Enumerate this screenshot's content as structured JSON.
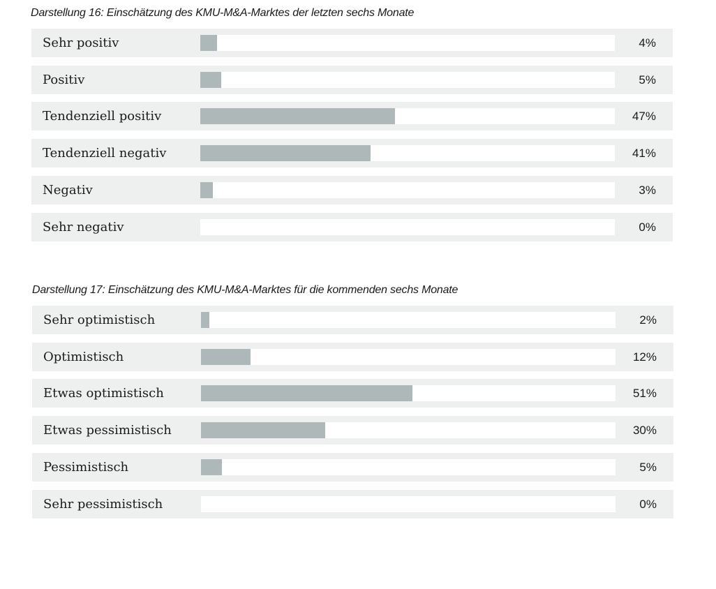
{
  "chart_data": [
    {
      "type": "bar",
      "orientation": "horizontal",
      "title": "Darstellung 16: Einschätzung des KMU-M&A-Marktes der letzten sechs Monate",
      "categories": [
        "Sehr positiv",
        "Positiv",
        "Tendenziell positiv",
        "Tendenziell negativ",
        "Negativ",
        "Sehr negativ"
      ],
      "values": [
        4,
        5,
        47,
        41,
        3,
        0
      ],
      "value_labels": [
        "4%",
        "5%",
        "47%",
        "41%",
        "3%",
        "0%"
      ],
      "xlim": [
        0,
        100
      ],
      "unit": "%",
      "grid": false,
      "bar_color": "#aeb8b8"
    },
    {
      "type": "bar",
      "orientation": "horizontal",
      "title": "Darstellung 17: Einschätzung des KMU-M&A-Marktes für die kommenden sechs Monate",
      "categories": [
        "Sehr optimistisch",
        "Optimistisch",
        "Etwas optimistisch",
        "Etwas pessimistisch",
        "Pessimistisch",
        "Sehr pessimistisch"
      ],
      "values": [
        2,
        12,
        51,
        30,
        5,
        0
      ],
      "value_labels": [
        "2%",
        "12%",
        "51%",
        "30%",
        "5%",
        "0%"
      ],
      "xlim": [
        0,
        100
      ],
      "unit": "%",
      "grid": false,
      "bar_color": "#aeb8b8"
    }
  ]
}
